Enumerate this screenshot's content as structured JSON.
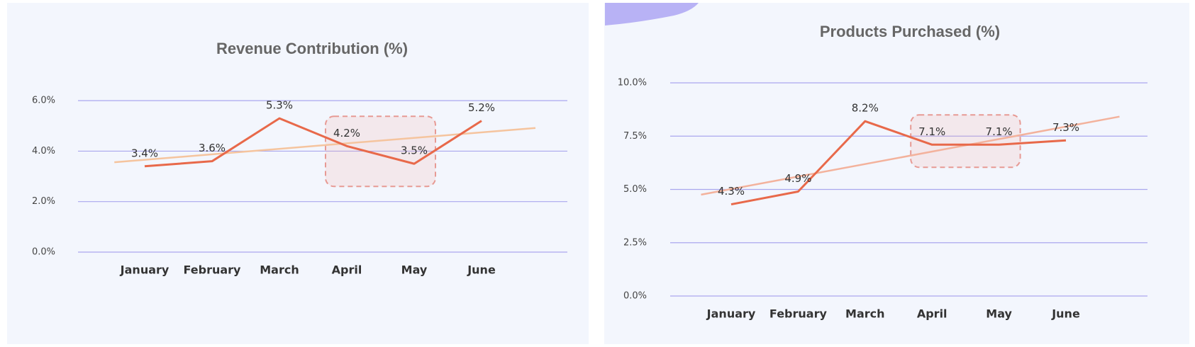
{
  "chart_data": [
    {
      "type": "line",
      "title": "Revenue Contribution (%)",
      "categories": [
        "January",
        "February",
        "March",
        "April",
        "May",
        "June"
      ],
      "series": [
        {
          "color": "#e8694a",
          "values": [
            3.4,
            3.6,
            5.3,
            4.2,
            3.5,
            5.2
          ],
          "value_labels": [
            "3.4%",
            "3.6%",
            "5.3%",
            "4.2%",
            "3.5%",
            "5.2%"
          ]
        }
      ],
      "ylim": [
        0,
        6.2
      ],
      "yticks": [
        {
          "value": 0,
          "label": "0.0%"
        },
        {
          "value": 2,
          "label": "2.0%"
        },
        {
          "value": 4,
          "label": "4.0%"
        },
        {
          "value": 6,
          "label": "6.0%"
        }
      ],
      "grid": true,
      "trendline": true,
      "trendline_color": "#f5c49e",
      "highlight": [
        3,
        4
      ]
    },
    {
      "type": "line",
      "title": "Products Purchased (%)",
      "categories": [
        "January",
        "February",
        "March",
        "April",
        "May",
        "June"
      ],
      "series": [
        {
          "color": "#e8694a",
          "values": [
            4.3,
            4.9,
            8.2,
            7.1,
            7.1,
            7.3
          ],
          "value_labels": [
            "4.3%",
            "4.9%",
            "8.2%",
            "7.1%",
            "7.1%",
            "7.3%"
          ]
        }
      ],
      "ylim": [
        0,
        10
      ],
      "yticks": [
        {
          "value": 0,
          "label": "0.0%"
        },
        {
          "value": 2.5,
          "label": "2.5%"
        },
        {
          "value": 5,
          "label": "5.0%"
        },
        {
          "value": 7.5,
          "label": "7.5%"
        },
        {
          "value": 10,
          "label": "10.0%"
        }
      ],
      "grid": true,
      "trendline": true,
      "trendline_color": "#f3b29c",
      "highlight": [
        3,
        4
      ]
    }
  ]
}
